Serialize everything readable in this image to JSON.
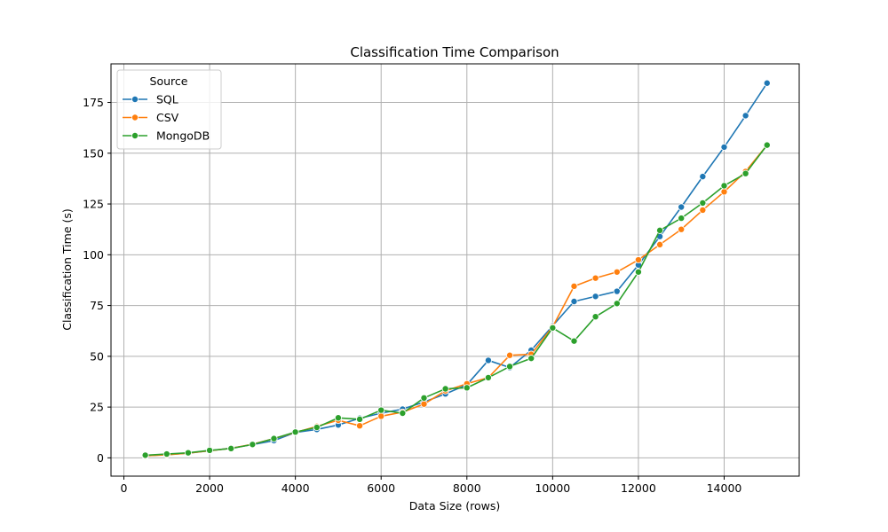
{
  "chart_data": {
    "type": "line",
    "title": "Classification Time Comparison",
    "xlabel": "Data Size (rows)",
    "ylabel": "Classification Time (s)",
    "xlim": [
      -300,
      15750
    ],
    "ylim": [
      -9,
      194
    ],
    "xticks": [
      0,
      2000,
      4000,
      6000,
      8000,
      10000,
      12000,
      14000
    ],
    "yticks": [
      0,
      25,
      50,
      75,
      100,
      125,
      150,
      175
    ],
    "grid": true,
    "legend": {
      "title": "Source",
      "position": "top-left"
    },
    "x": [
      500,
      1000,
      1500,
      2000,
      2500,
      3000,
      3500,
      4000,
      4500,
      5000,
      5500,
      6000,
      6500,
      7000,
      7500,
      8000,
      8500,
      9000,
      9500,
      10000,
      10500,
      11000,
      11500,
      12000,
      12500,
      13000,
      13500,
      14000,
      14500,
      15000
    ],
    "series": [
      {
        "name": "SQL",
        "color": "#1f77b4",
        "values": [
          1.0,
          1.6,
          2.3,
          3.5,
          4.8,
          6.5,
          8.5,
          12.5,
          14.0,
          16.2,
          19.5,
          22.0,
          24.0,
          27.5,
          31.5,
          36.0,
          48.0,
          44.5,
          53.0,
          65.0,
          77.0,
          79.5,
          82.0,
          95.0,
          109.0,
          123.5,
          138.5,
          153.0,
          168.5,
          184.5
        ]
      },
      {
        "name": "CSV",
        "color": "#ff7f0e",
        "values": [
          1.0,
          1.5,
          2.3,
          3.5,
          4.7,
          6.7,
          9.5,
          12.5,
          15.5,
          18.5,
          15.8,
          20.5,
          22.5,
          26.5,
          33.0,
          36.5,
          39.5,
          50.5,
          51.0,
          64.5,
          84.5,
          88.5,
          91.5,
          97.5,
          105.0,
          112.5,
          122.0,
          131.0,
          141.0,
          154.0
        ]
      },
      {
        "name": "MongoDB",
        "color": "#2ca02c",
        "values": [
          1.3,
          1.9,
          2.5,
          3.7,
          4.6,
          6.6,
          9.5,
          12.7,
          15.0,
          19.7,
          19.0,
          23.5,
          22.0,
          29.5,
          34.0,
          34.5,
          39.5,
          45.0,
          49.0,
          64.0,
          57.5,
          69.5,
          76.0,
          91.5,
          112.0,
          118.0,
          125.5,
          134.0,
          140.0,
          154.0
        ]
      }
    ]
  }
}
